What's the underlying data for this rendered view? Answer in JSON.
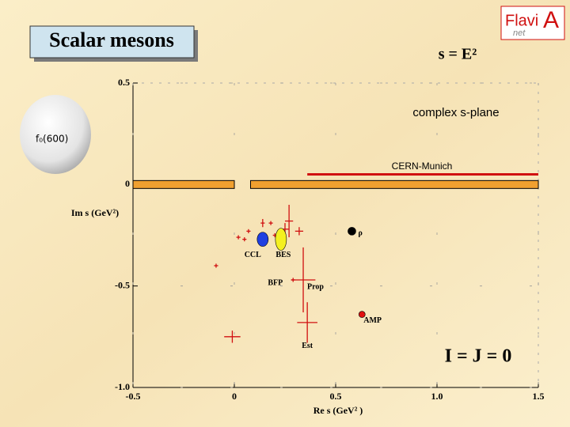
{
  "slide_title": "Scalar mesons",
  "bubble_label": "f₀(600)",
  "logo": {
    "left": "Flavi",
    "right": "A",
    "sub": "net"
  },
  "chart_data": {
    "type": "scatter",
    "title": "s = E²",
    "xlabel": "Re s (GeV² )",
    "ylabel": "Im s (GeV²)",
    "plane_label": "complex s-plane",
    "range_label": "CERN-Munich",
    "quantum_numbers": "I = J = 0",
    "xlim": [
      -0.5,
      1.5
    ],
    "ylim": [
      -1.0,
      0.5
    ],
    "xticks": [
      -0.5,
      0,
      0.5,
      {
        "value": 1.0,
        "label": "1.0"
      },
      1.5
    ],
    "yticks": [
      {
        "value": -1.0,
        "label": "-1.0"
      },
      -0.5,
      0,
      0.5
    ],
    "color": "#d01010",
    "points": {
      "x": [
        -0.09,
        -0.01,
        0.02,
        0.05,
        0.07,
        0.14,
        0.18,
        0.2,
        0.25,
        0.27,
        0.32,
        0.29,
        0.34,
        0.36
      ],
      "y": [
        -0.4,
        -0.75,
        -0.26,
        -0.27,
        -0.23,
        -0.19,
        -0.19,
        -0.25,
        -0.22,
        -0.18,
        -0.23,
        -0.47,
        -0.47,
        -0.68
      ],
      "xerr": [
        0.01,
        0.04,
        0.01,
        0.01,
        0.01,
        0.01,
        0.01,
        0.01,
        0.02,
        0.02,
        0.02,
        0.01,
        0.06,
        0.05
      ],
      "yerr": [
        0.01,
        0.03,
        0.01,
        0.01,
        0.01,
        0.02,
        0.01,
        0.01,
        0.03,
        0.08,
        0.02,
        0.01,
        0.16,
        0.1
      ],
      "labels": [
        null,
        null,
        null,
        null,
        null,
        null,
        null,
        null,
        null,
        null,
        null,
        "BFP",
        "Prop",
        "Est"
      ]
    },
    "poles": [
      {
        "label": "CCL",
        "x": 0.14,
        "y": -0.27,
        "color": "#2040e0"
      },
      {
        "label": "BES",
        "x": 0.23,
        "y": -0.27,
        "color": "#f4f020"
      },
      {
        "label": "ρ",
        "x": 0.58,
        "y": -0.23,
        "color": "#000000"
      },
      {
        "label": "AMP",
        "x": 0.63,
        "y": -0.64,
        "color": "#e01010"
      }
    ],
    "cut": {
      "y": 0,
      "segments": [
        [
          -0.5,
          0.0
        ],
        [
          0.08,
          1.5
        ]
      ],
      "color": "#f0a030"
    },
    "range_line": {
      "y": 0.05,
      "x": [
        0.36,
        1.5
      ],
      "color": "#d01010"
    }
  }
}
